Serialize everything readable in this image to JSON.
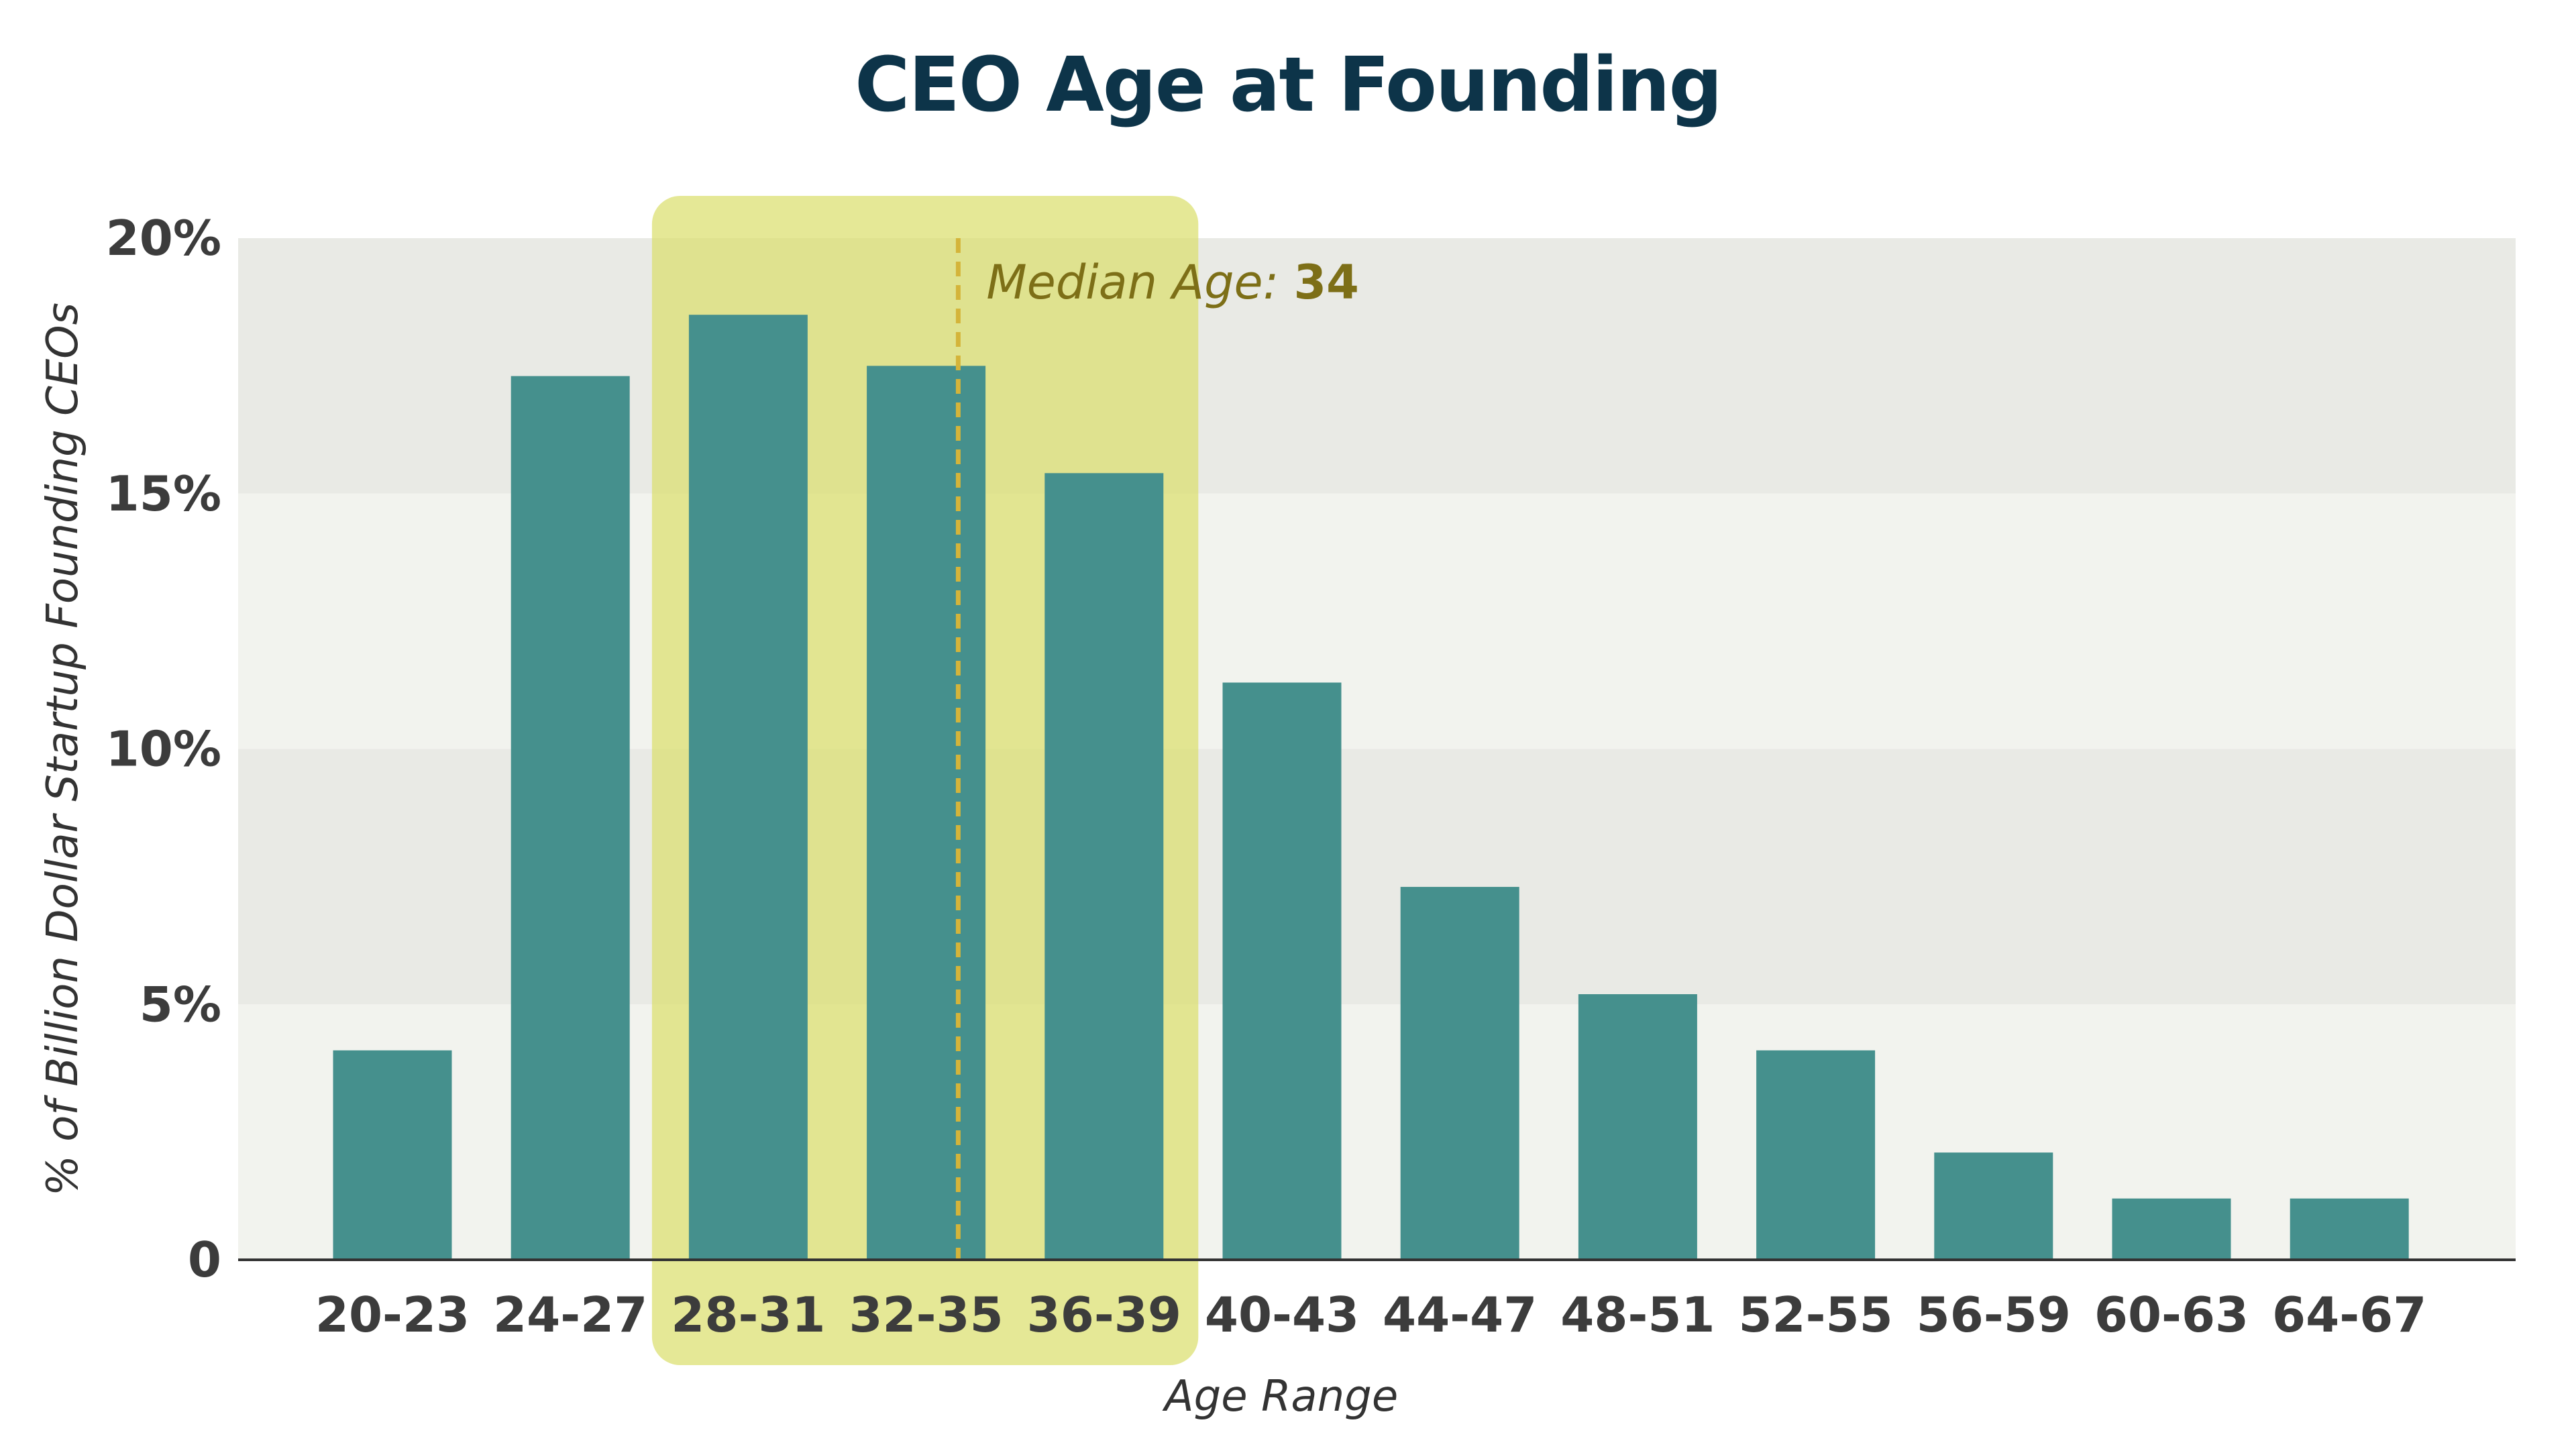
{
  "chart_data": {
    "type": "bar",
    "title": "CEO Age at Founding",
    "xlabel": "Age Range",
    "ylabel": "% of Billion Dollar Startup Founding CEOs",
    "categories": [
      "20-23",
      "24-27",
      "28-31",
      "32-35",
      "36-39",
      "40-43",
      "44-47",
      "48-51",
      "52-55",
      "56-59",
      "60-63",
      "64-67"
    ],
    "values": [
      4.1,
      17.3,
      18.5,
      17.5,
      15.4,
      11.3,
      7.3,
      5.2,
      4.1,
      2.1,
      1.2,
      1.2
    ],
    "ylim": [
      0,
      20
    ],
    "yticks": [
      0,
      5,
      10,
      15,
      20
    ],
    "ytick_labels": [
      "0",
      "5%",
      "10%",
      "15%",
      "20%"
    ],
    "grid": "alternating horizontal bands",
    "colors": {
      "bar": "#45908d",
      "highlight": "#dbdf6d",
      "median_line": "#d4b43a",
      "band_dark": "#e9eae5",
      "band_light": "#f2f3ee",
      "title": "#0d3449"
    },
    "highlight_range": [
      "28-31",
      "36-39"
    ],
    "median": {
      "label": "Median Age: ",
      "value": "34",
      "x": 34
    }
  }
}
